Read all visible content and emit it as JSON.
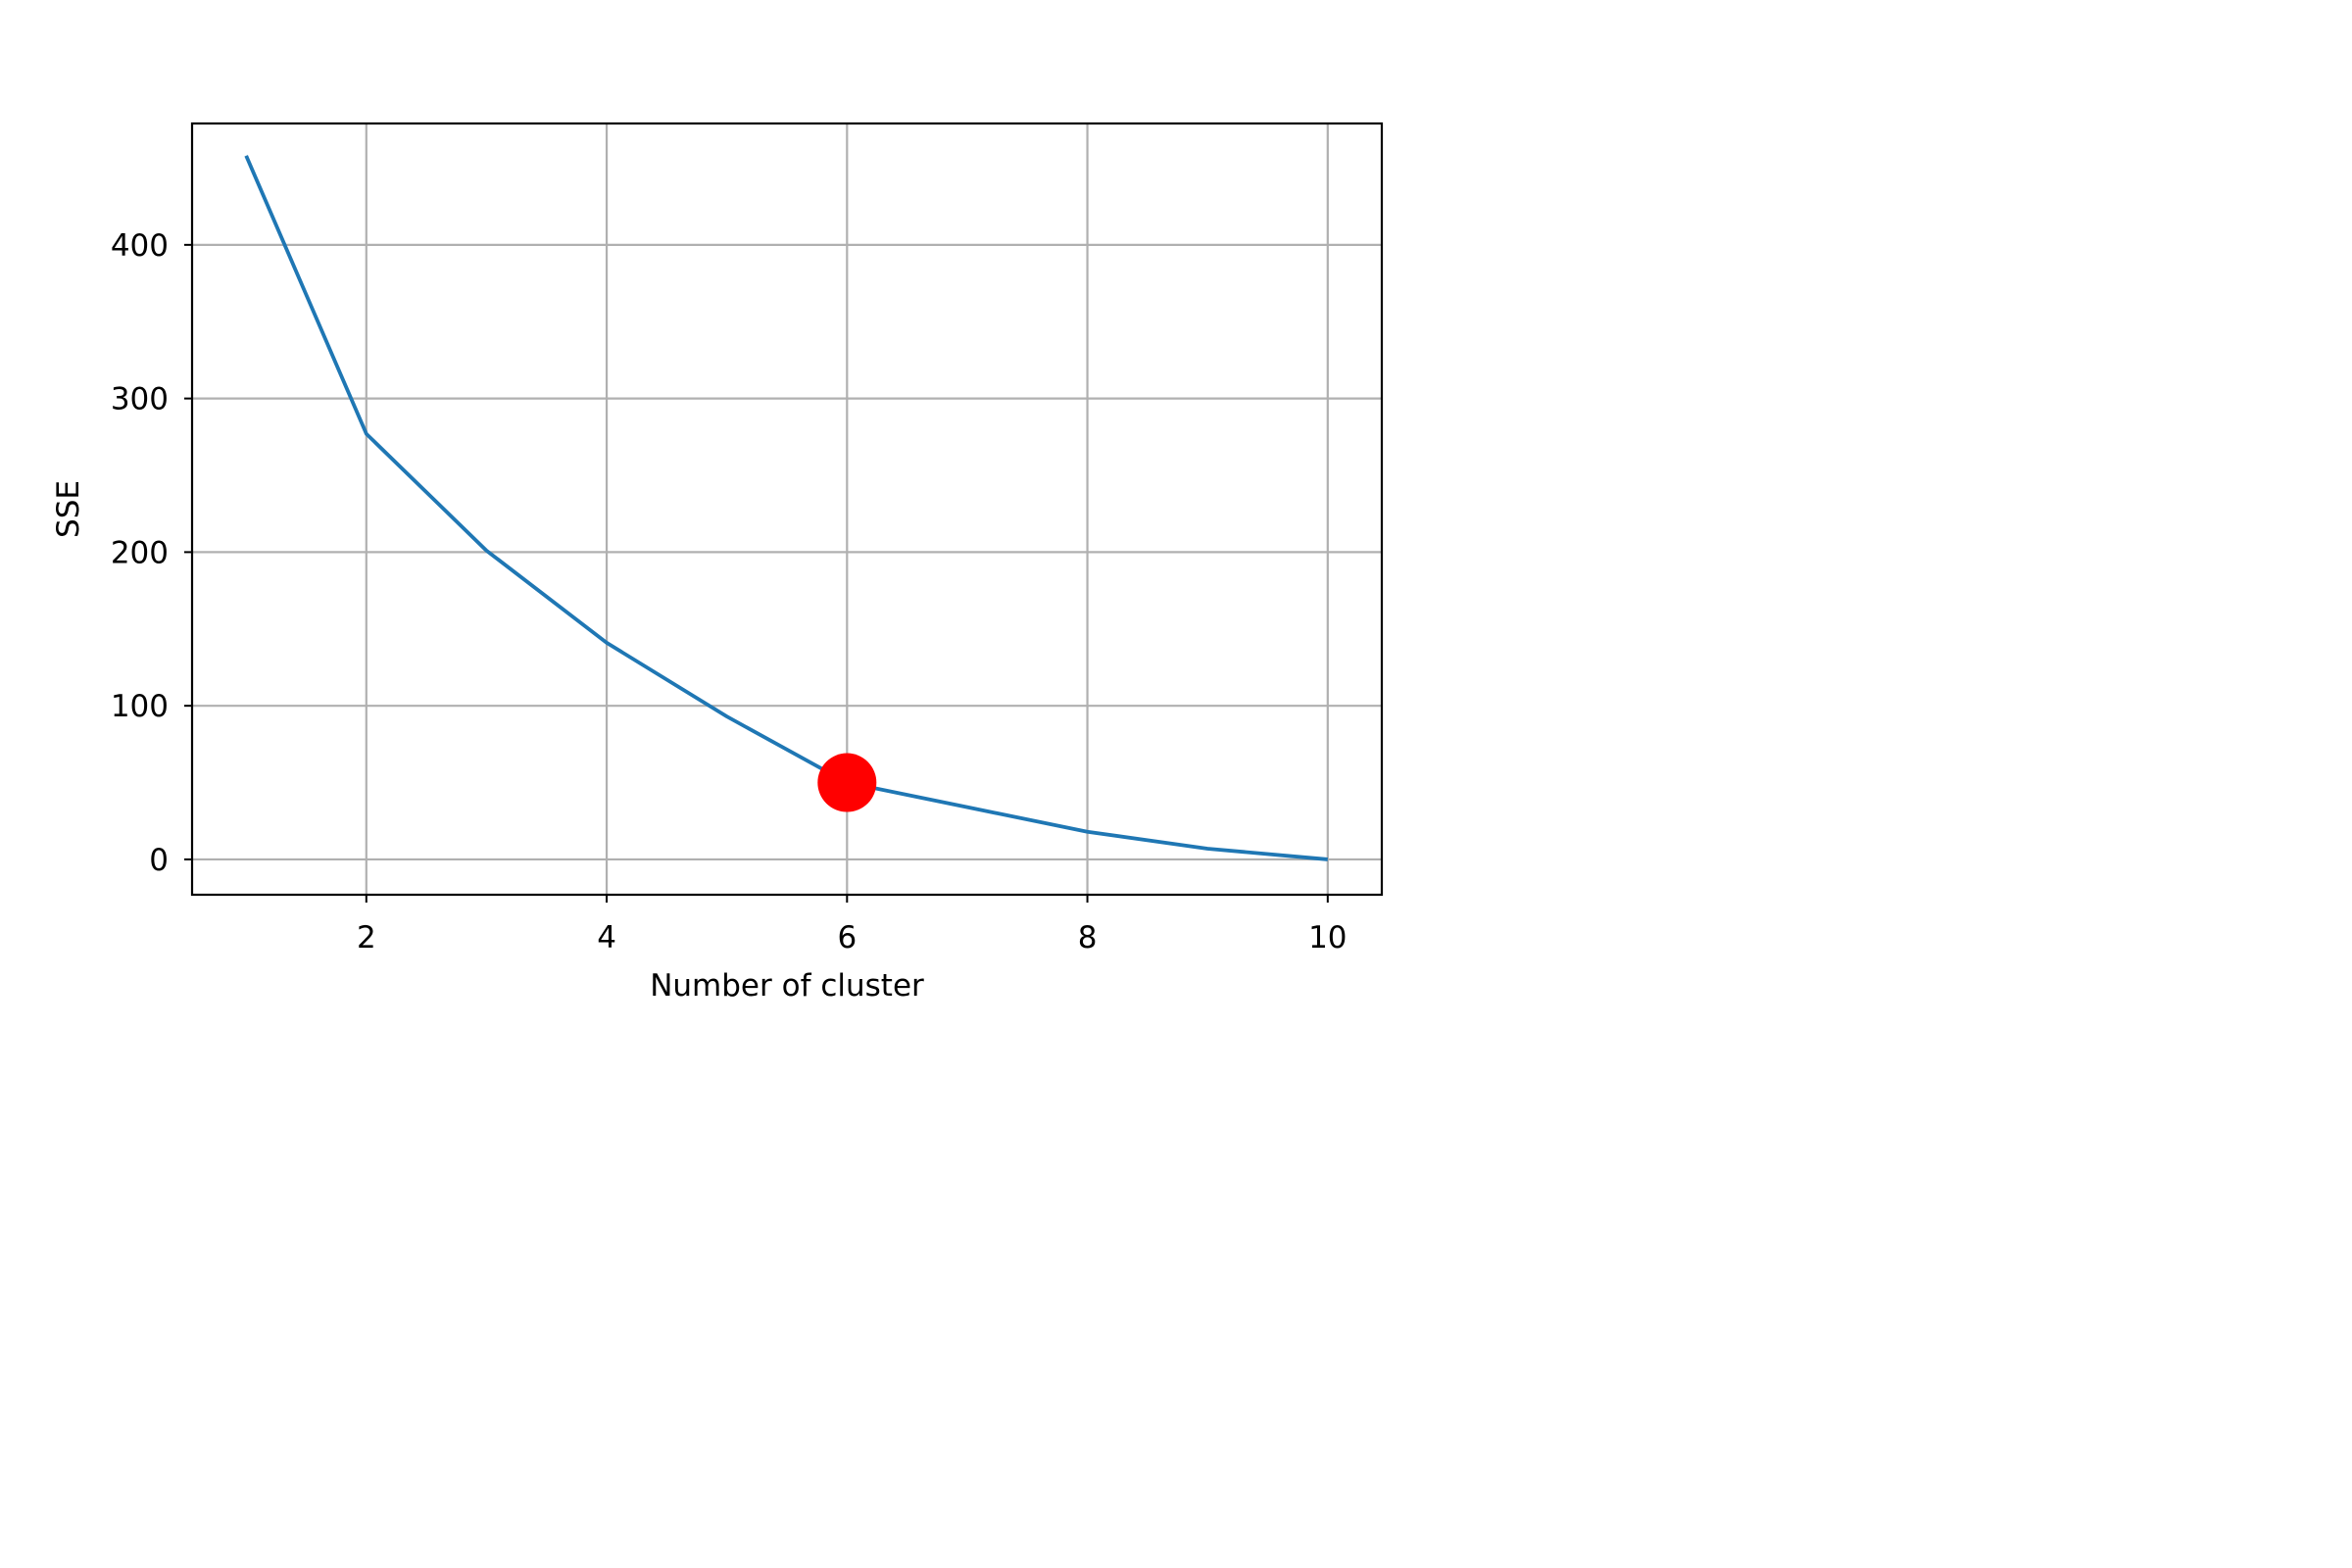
{
  "chart_data": {
    "type": "line",
    "title": "",
    "xlabel": "Number of cluster",
    "ylabel": "SSE",
    "xlim": [
      0.55,
      10.45
    ],
    "ylim": [
      -23,
      479
    ],
    "xticks": [
      2,
      4,
      6,
      8,
      10
    ],
    "yticks": [
      0,
      100,
      200,
      300,
      400
    ],
    "grid": true,
    "series": [
      {
        "x": [
          1,
          2,
          3,
          4,
          5,
          6,
          7,
          8,
          9,
          10
        ],
        "y": [
          458,
          277,
          201,
          141,
          93,
          50,
          34,
          18,
          7,
          0
        ],
        "color": "#1f77b4"
      }
    ],
    "highlight": {
      "x": 6,
      "y": 50,
      "color": "#ff0000"
    }
  }
}
